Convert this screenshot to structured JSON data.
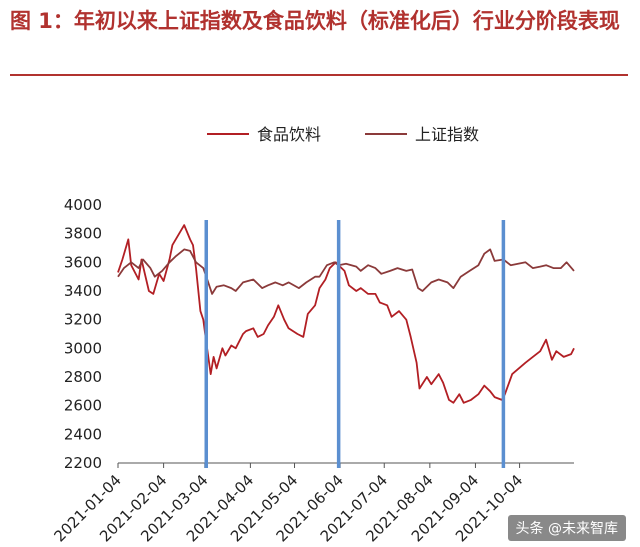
{
  "title": "图 1：年初以来上证指数及食品饮料（标准化后）行业分阶段表现",
  "watermark": "头条 @未来智库",
  "colors": {
    "accent": "#b1322f",
    "food": "#b21f24",
    "sh": "#8b3a3a",
    "marker": "#5b8fd0",
    "axis": "#555555"
  },
  "chart_data": {
    "type": "line",
    "title": "",
    "xlabel": "",
    "ylabel": "",
    "ylim": [
      2200,
      4000
    ],
    "yticks": [
      2200,
      2400,
      2600,
      2800,
      3000,
      3200,
      3400,
      3600,
      3800,
      4000
    ],
    "xticks": [
      "2021-01-04",
      "2021-02-04",
      "2021-03-04",
      "2021-04-04",
      "2021-05-04",
      "2021-06-04",
      "2021-07-04",
      "2021-08-04",
      "2021-09-04",
      "2021-10-04"
    ],
    "xrange": [
      "2021-01-04",
      "2021-11-10"
    ],
    "grid": false,
    "legend": "top",
    "vertical_markers": [
      "2021-03-05",
      "2021-06-03",
      "2021-09-23"
    ],
    "series": [
      {
        "name": "食品饮料",
        "color": "#b21f24",
        "points": [
          [
            "2021-01-04",
            3530
          ],
          [
            "2021-01-07",
            3620
          ],
          [
            "2021-01-11",
            3760
          ],
          [
            "2021-01-13",
            3580
          ],
          [
            "2021-01-18",
            3480
          ],
          [
            "2021-01-20",
            3620
          ],
          [
            "2021-01-25",
            3400
          ],
          [
            "2021-01-28",
            3380
          ],
          [
            "2021-02-01",
            3520
          ],
          [
            "2021-02-04",
            3470
          ],
          [
            "2021-02-08",
            3620
          ],
          [
            "2021-02-10",
            3720
          ],
          [
            "2021-02-18",
            3860
          ],
          [
            "2021-02-22",
            3760
          ],
          [
            "2021-02-24",
            3720
          ],
          [
            "2021-02-26",
            3560
          ],
          [
            "2021-03-01",
            3260
          ],
          [
            "2021-03-03",
            3200
          ],
          [
            "2021-03-05",
            3040
          ],
          [
            "2021-03-08",
            2820
          ],
          [
            "2021-03-10",
            2940
          ],
          [
            "2021-03-12",
            2860
          ],
          [
            "2021-03-16",
            3000
          ],
          [
            "2021-03-18",
            2950
          ],
          [
            "2021-03-22",
            3020
          ],
          [
            "2021-03-25",
            3000
          ],
          [
            "2021-03-30",
            3100
          ],
          [
            "2021-04-01",
            3120
          ],
          [
            "2021-04-06",
            3140
          ],
          [
            "2021-04-09",
            3080
          ],
          [
            "2021-04-13",
            3100
          ],
          [
            "2021-04-16",
            3160
          ],
          [
            "2021-04-20",
            3220
          ],
          [
            "2021-04-23",
            3300
          ],
          [
            "2021-04-27",
            3200
          ],
          [
            "2021-04-30",
            3140
          ],
          [
            "2021-05-06",
            3100
          ],
          [
            "2021-05-10",
            3080
          ],
          [
            "2021-05-13",
            3240
          ],
          [
            "2021-05-18",
            3300
          ],
          [
            "2021-05-21",
            3420
          ],
          [
            "2021-05-25",
            3480
          ],
          [
            "2021-05-28",
            3560
          ],
          [
            "2021-06-01",
            3600
          ],
          [
            "2021-06-03",
            3580
          ],
          [
            "2021-06-07",
            3540
          ],
          [
            "2021-06-10",
            3440
          ],
          [
            "2021-06-15",
            3400
          ],
          [
            "2021-06-18",
            3420
          ],
          [
            "2021-06-23",
            3380
          ],
          [
            "2021-06-28",
            3380
          ],
          [
            "2021-07-01",
            3320
          ],
          [
            "2021-07-06",
            3300
          ],
          [
            "2021-07-09",
            3220
          ],
          [
            "2021-07-14",
            3260
          ],
          [
            "2021-07-19",
            3200
          ],
          [
            "2021-07-22",
            3080
          ],
          [
            "2021-07-26",
            2900
          ],
          [
            "2021-07-28",
            2720
          ],
          [
            "2021-08-02",
            2800
          ],
          [
            "2021-08-05",
            2750
          ],
          [
            "2021-08-10",
            2820
          ],
          [
            "2021-08-13",
            2760
          ],
          [
            "2021-08-17",
            2640
          ],
          [
            "2021-08-20",
            2620
          ],
          [
            "2021-08-24",
            2680
          ],
          [
            "2021-08-27",
            2620
          ],
          [
            "2021-09-01",
            2640
          ],
          [
            "2021-09-06",
            2680
          ],
          [
            "2021-09-10",
            2740
          ],
          [
            "2021-09-14",
            2700
          ],
          [
            "2021-09-17",
            2660
          ],
          [
            "2021-09-22",
            2640
          ],
          [
            "2021-09-24",
            2680
          ],
          [
            "2021-09-29",
            2820
          ],
          [
            "2021-10-08",
            2900
          ],
          [
            "2021-10-13",
            2940
          ],
          [
            "2021-10-18",
            2980
          ],
          [
            "2021-10-22",
            3060
          ],
          [
            "2021-10-26",
            2920
          ],
          [
            "2021-10-29",
            2980
          ],
          [
            "2021-11-03",
            2940
          ],
          [
            "2021-11-08",
            2960
          ],
          [
            "2021-11-10",
            3000
          ]
        ]
      },
      {
        "name": "上证指数",
        "color": "#8b3a3a",
        "points": [
          [
            "2021-01-04",
            3500
          ],
          [
            "2021-01-08",
            3560
          ],
          [
            "2021-01-13",
            3600
          ],
          [
            "2021-01-18",
            3560
          ],
          [
            "2021-01-21",
            3620
          ],
          [
            "2021-01-26",
            3560
          ],
          [
            "2021-01-29",
            3500
          ],
          [
            "2021-02-03",
            3540
          ],
          [
            "2021-02-08",
            3600
          ],
          [
            "2021-02-12",
            3640
          ],
          [
            "2021-02-18",
            3690
          ],
          [
            "2021-02-22",
            3680
          ],
          [
            "2021-02-26",
            3600
          ],
          [
            "2021-03-03",
            3560
          ],
          [
            "2021-03-05",
            3500
          ],
          [
            "2021-03-09",
            3380
          ],
          [
            "2021-03-12",
            3430
          ],
          [
            "2021-03-17",
            3440
          ],
          [
            "2021-03-22",
            3420
          ],
          [
            "2021-03-25",
            3400
          ],
          [
            "2021-03-30",
            3460
          ],
          [
            "2021-04-06",
            3480
          ],
          [
            "2021-04-12",
            3420
          ],
          [
            "2021-04-16",
            3440
          ],
          [
            "2021-04-21",
            3460
          ],
          [
            "2021-04-26",
            3440
          ],
          [
            "2021-04-30",
            3460
          ],
          [
            "2021-05-07",
            3420
          ],
          [
            "2021-05-12",
            3460
          ],
          [
            "2021-05-18",
            3500
          ],
          [
            "2021-05-21",
            3500
          ],
          [
            "2021-05-26",
            3580
          ],
          [
            "2021-05-31",
            3600
          ],
          [
            "2021-06-03",
            3580
          ],
          [
            "2021-06-08",
            3590
          ],
          [
            "2021-06-15",
            3570
          ],
          [
            "2021-06-18",
            3540
          ],
          [
            "2021-06-23",
            3580
          ],
          [
            "2021-06-28",
            3560
          ],
          [
            "2021-07-02",
            3520
          ],
          [
            "2021-07-08",
            3540
          ],
          [
            "2021-07-13",
            3560
          ],
          [
            "2021-07-19",
            3540
          ],
          [
            "2021-07-23",
            3550
          ],
          [
            "2021-07-27",
            3420
          ],
          [
            "2021-07-30",
            3400
          ],
          [
            "2021-08-05",
            3460
          ],
          [
            "2021-08-10",
            3480
          ],
          [
            "2021-08-16",
            3460
          ],
          [
            "2021-08-20",
            3420
          ],
          [
            "2021-08-25",
            3500
          ],
          [
            "2021-08-31",
            3540
          ],
          [
            "2021-09-06",
            3580
          ],
          [
            "2021-09-10",
            3660
          ],
          [
            "2021-09-14",
            3690
          ],
          [
            "2021-09-17",
            3610
          ],
          [
            "2021-09-23",
            3620
          ],
          [
            "2021-09-28",
            3580
          ],
          [
            "2021-10-08",
            3600
          ],
          [
            "2021-10-13",
            3560
          ],
          [
            "2021-10-18",
            3570
          ],
          [
            "2021-10-22",
            3580
          ],
          [
            "2021-10-27",
            3560
          ],
          [
            "2021-11-01",
            3560
          ],
          [
            "2021-11-05",
            3600
          ],
          [
            "2021-11-10",
            3540
          ]
        ]
      }
    ]
  }
}
